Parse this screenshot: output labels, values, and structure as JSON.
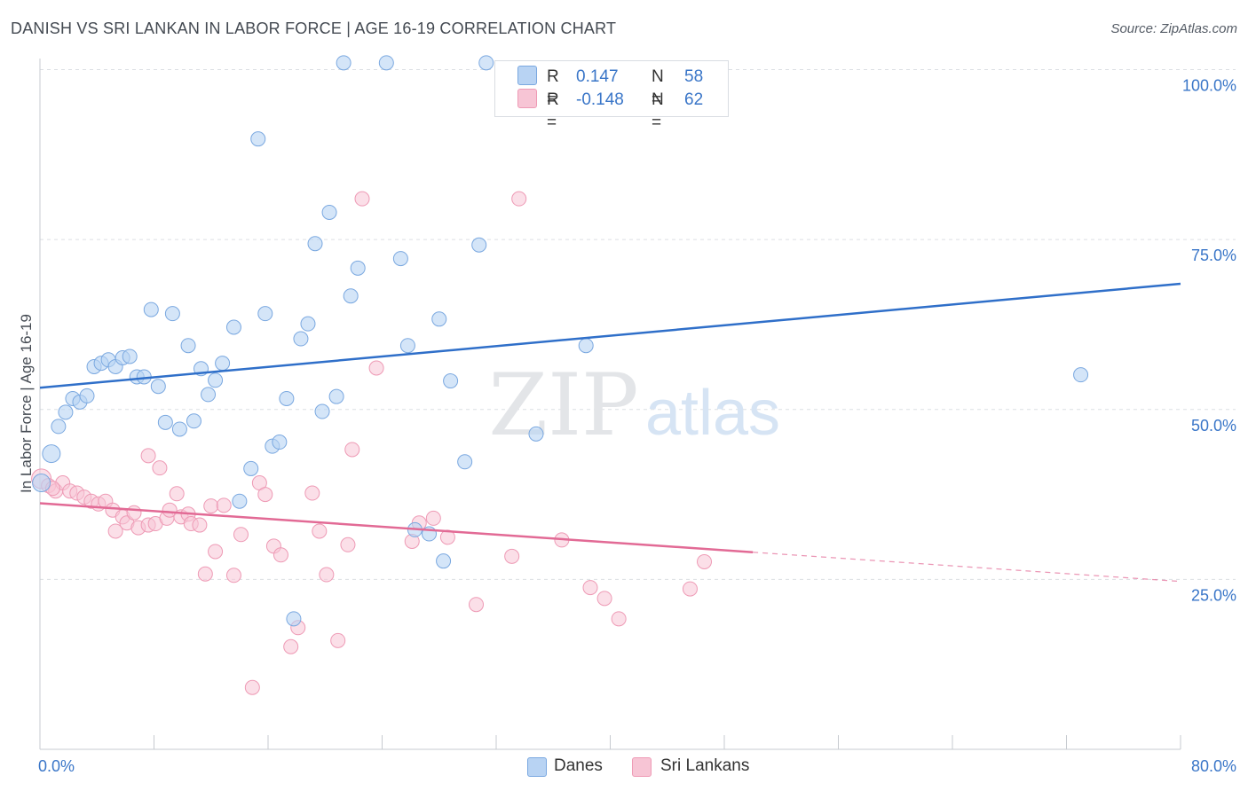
{
  "title": "DANISH VS SRI LANKAN IN LABOR FORCE | AGE 16-19 CORRELATION CHART",
  "source": "Source: ZipAtlas.com",
  "watermark": {
    "zip": "ZIP",
    "atlas": "atlas"
  },
  "colors": {
    "danes_fill": "#b8d3f3",
    "danes_stroke": "#7aa8e0",
    "danes_line": "#2f6fc9",
    "sri_fill": "#f7c5d5",
    "sri_stroke": "#ee9ab5",
    "sri_line": "#e26a95",
    "axis_text": "#3a76c8",
    "grid": "#dcdfe3"
  },
  "legend_top": {
    "rows": [
      {
        "r_label": "R =",
        "r_value": "0.147",
        "n_label": "N =",
        "n_value": "58"
      },
      {
        "r_label": "R =",
        "r_value": "-0.148",
        "n_label": "N =",
        "n_value": "62"
      }
    ]
  },
  "legend_bottom": {
    "items": [
      "Danes",
      "Sri Lankans"
    ]
  },
  "chart_data": {
    "type": "scatter",
    "title": "DANISH VS SRI LANKAN IN LABOR FORCE | AGE 16-19 CORRELATION CHART",
    "xlabel": "",
    "ylabel": "In Labor Force | Age 16-19",
    "xlim": [
      0,
      80
    ],
    "ylim": [
      0,
      100
    ],
    "x_tick_labels": [
      "0.0%",
      "80.0%"
    ],
    "y_ticks": [
      25,
      50,
      75,
      100
    ],
    "y_tick_labels": [
      "25.0%",
      "50.0%",
      "75.0%",
      "100.0%"
    ],
    "grid": true,
    "legend_position": "top-center",
    "series": [
      {
        "name": "Danes",
        "R": 0.147,
        "N": 58,
        "trend": {
          "x": [
            0,
            80
          ],
          "y": [
            53.2,
            68.5
          ]
        },
        "points": [
          [
            0.1,
            39.2
          ],
          [
            0.8,
            43.5
          ],
          [
            1.3,
            47.5
          ],
          [
            1.8,
            49.6
          ],
          [
            2.3,
            51.6
          ],
          [
            2.8,
            51.1
          ],
          [
            3.3,
            52.0
          ],
          [
            3.8,
            56.3
          ],
          [
            4.3,
            56.8
          ],
          [
            4.8,
            57.3
          ],
          [
            5.3,
            56.3
          ],
          [
            5.8,
            57.6
          ],
          [
            6.3,
            57.8
          ],
          [
            6.8,
            54.8
          ],
          [
            7.3,
            54.8
          ],
          [
            7.8,
            64.7
          ],
          [
            8.3,
            53.4
          ],
          [
            8.8,
            48.1
          ],
          [
            9.3,
            64.1
          ],
          [
            9.8,
            47.1
          ],
          [
            10.4,
            59.4
          ],
          [
            10.8,
            48.3
          ],
          [
            11.3,
            56.0
          ],
          [
            11.8,
            52.2
          ],
          [
            12.3,
            54.3
          ],
          [
            12.8,
            56.8
          ],
          [
            13.6,
            62.1
          ],
          [
            14.0,
            36.5
          ],
          [
            14.8,
            41.3
          ],
          [
            15.3,
            89.8
          ],
          [
            15.8,
            64.1
          ],
          [
            16.3,
            44.6
          ],
          [
            16.8,
            45.2
          ],
          [
            17.3,
            51.6
          ],
          [
            17.8,
            19.2
          ],
          [
            18.3,
            60.4
          ],
          [
            18.8,
            62.6
          ],
          [
            19.3,
            74.4
          ],
          [
            19.8,
            49.7
          ],
          [
            20.3,
            79.0
          ],
          [
            20.8,
            51.9
          ],
          [
            21.3,
            101.0
          ],
          [
            21.8,
            66.7
          ],
          [
            22.3,
            70.8
          ],
          [
            24.3,
            101.0
          ],
          [
            25.3,
            72.2
          ],
          [
            25.8,
            59.4
          ],
          [
            26.3,
            32.3
          ],
          [
            27.3,
            31.7
          ],
          [
            28.0,
            63.3
          ],
          [
            28.3,
            27.7
          ],
          [
            28.8,
            54.2
          ],
          [
            29.8,
            42.3
          ],
          [
            30.8,
            74.2
          ],
          [
            31.3,
            101.0
          ],
          [
            34.8,
            46.4
          ],
          [
            38.3,
            59.4
          ],
          [
            73.0,
            55.1
          ]
        ]
      },
      {
        "name": "Sri Lankans",
        "R": -0.148,
        "N": 62,
        "trend": {
          "x": [
            0,
            50
          ],
          "y": [
            36.2,
            29.0
          ]
        },
        "trend_dashed": {
          "x": [
            50,
            80
          ],
          "y": [
            29.0,
            24.7
          ]
        },
        "points": [
          [
            0.1,
            39.8
          ],
          [
            0.6,
            38.8
          ],
          [
            1.1,
            38.0
          ],
          [
            1.6,
            39.2
          ],
          [
            2.1,
            38.0
          ],
          [
            2.6,
            37.7
          ],
          [
            3.1,
            37.1
          ],
          [
            3.6,
            36.5
          ],
          [
            4.1,
            36.1
          ],
          [
            4.6,
            36.5
          ],
          [
            5.1,
            35.2
          ],
          [
            5.3,
            32.1
          ],
          [
            5.8,
            34.2
          ],
          [
            6.1,
            33.3
          ],
          [
            6.6,
            34.8
          ],
          [
            6.9,
            32.6
          ],
          [
            7.6,
            33.0
          ],
          [
            7.6,
            43.2
          ],
          [
            8.1,
            33.2
          ],
          [
            8.4,
            41.4
          ],
          [
            8.9,
            34.0
          ],
          [
            9.1,
            35.2
          ],
          [
            9.6,
            37.6
          ],
          [
            9.9,
            34.2
          ],
          [
            10.4,
            34.6
          ],
          [
            10.6,
            33.2
          ],
          [
            11.2,
            33.0
          ],
          [
            11.6,
            25.8
          ],
          [
            12.0,
            35.8
          ],
          [
            12.3,
            29.1
          ],
          [
            12.9,
            35.9
          ],
          [
            13.6,
            25.6
          ],
          [
            14.1,
            31.6
          ],
          [
            14.9,
            9.1
          ],
          [
            15.4,
            39.2
          ],
          [
            15.8,
            37.5
          ],
          [
            16.4,
            29.9
          ],
          [
            16.9,
            28.6
          ],
          [
            17.6,
            15.1
          ],
          [
            18.1,
            17.9
          ],
          [
            19.1,
            37.7
          ],
          [
            19.6,
            32.1
          ],
          [
            20.1,
            25.7
          ],
          [
            20.9,
            16.0
          ],
          [
            21.6,
            30.1
          ],
          [
            21.9,
            44.1
          ],
          [
            22.6,
            81.0
          ],
          [
            23.6,
            56.1
          ],
          [
            26.1,
            30.6
          ],
          [
            26.6,
            33.3
          ],
          [
            27.6,
            34.0
          ],
          [
            28.6,
            31.2
          ],
          [
            30.6,
            21.3
          ],
          [
            33.1,
            28.4
          ],
          [
            33.6,
            81.0
          ],
          [
            36.6,
            30.8
          ],
          [
            38.6,
            23.8
          ],
          [
            39.6,
            22.2
          ],
          [
            40.6,
            19.2
          ],
          [
            45.6,
            23.6
          ],
          [
            46.6,
            27.6
          ],
          [
            0.9,
            38.4
          ]
        ]
      }
    ]
  }
}
